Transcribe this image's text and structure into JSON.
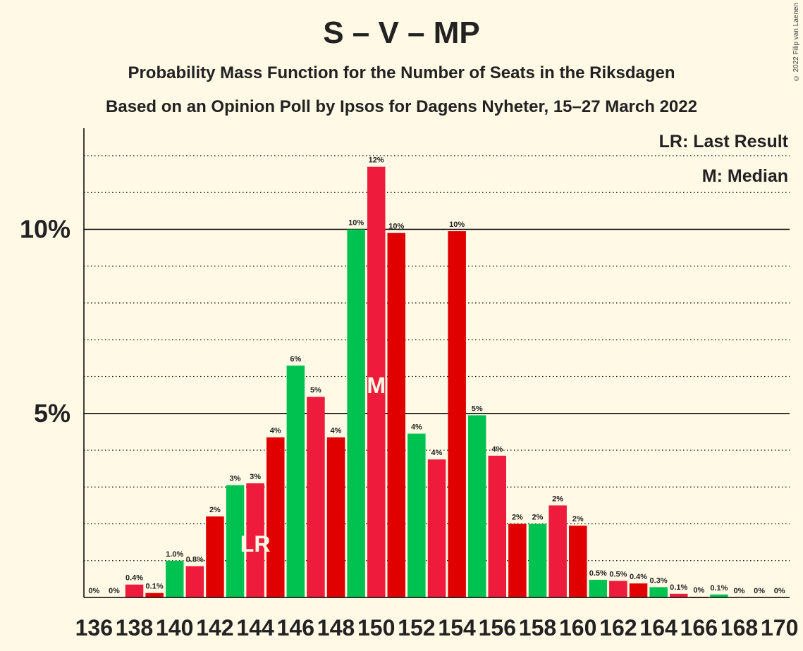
{
  "title": "S – V – MP",
  "subtitle1": "Probability Mass Function for the Number of Seats in the Riksdagen",
  "subtitle2": "Based on an Opinion Poll by Ipsos for Dagens Nyheter, 15–27 March 2022",
  "copyright": "© 2022 Filip van Laenen",
  "legend": {
    "lr": "LR: Last Result",
    "m": "M: Median"
  },
  "chart_data": {
    "type": "bar",
    "xlabel": "",
    "ylabel": "",
    "ylim": [
      0,
      12.7
    ],
    "y_ticks": [
      {
        "value": 5,
        "label": "5%"
      },
      {
        "value": 10,
        "label": "10%"
      }
    ],
    "grid": "dotted every 1%, solid at 5% and 10%",
    "legend_placement": "top-right",
    "colors": {
      "green": "#00c250",
      "pink": "#ee1b3c",
      "red": "#e00000"
    },
    "x_tick_step": 2,
    "last_result_seat": 144,
    "median_seat": 150,
    "markers": {
      "last_result": "LR",
      "median": "M"
    },
    "bars": [
      {
        "seat": 136,
        "value": 0,
        "label": "0%",
        "color": "green"
      },
      {
        "seat": 137,
        "value": 0,
        "label": "0%",
        "color": "pink"
      },
      {
        "seat": 138,
        "value": 0.35,
        "label": "0.4%",
        "color": "pink"
      },
      {
        "seat": 139,
        "value": 0.12,
        "label": "0.1%",
        "color": "red"
      },
      {
        "seat": 140,
        "value": 1.0,
        "label": "1.0%",
        "color": "green"
      },
      {
        "seat": 141,
        "value": 0.85,
        "label": "0.8%",
        "color": "pink"
      },
      {
        "seat": 142,
        "value": 2.2,
        "label": "2%",
        "color": "red"
      },
      {
        "seat": 143,
        "value": 3.05,
        "label": "3%",
        "color": "green"
      },
      {
        "seat": 144,
        "value": 3.1,
        "label": "3%",
        "color": "pink"
      },
      {
        "seat": 145,
        "value": 4.35,
        "label": "4%",
        "color": "red"
      },
      {
        "seat": 146,
        "value": 6.3,
        "label": "6%",
        "color": "green"
      },
      {
        "seat": 147,
        "value": 5.45,
        "label": "5%",
        "color": "pink"
      },
      {
        "seat": 148,
        "value": 4.35,
        "label": "4%",
        "color": "red"
      },
      {
        "seat": 149,
        "value": 10.0,
        "label": "10%",
        "color": "green"
      },
      {
        "seat": 150,
        "value": 11.7,
        "label": "12%",
        "color": "pink"
      },
      {
        "seat": 151,
        "value": 9.9,
        "label": "10%",
        "color": "red"
      },
      {
        "seat": 152,
        "value": 4.45,
        "label": "4%",
        "color": "green"
      },
      {
        "seat": 153,
        "value": 3.75,
        "label": "4%",
        "color": "pink"
      },
      {
        "seat": 154,
        "value": 9.95,
        "label": "10%",
        "color": "red"
      },
      {
        "seat": 155,
        "value": 4.95,
        "label": "5%",
        "color": "green"
      },
      {
        "seat": 156,
        "value": 3.85,
        "label": "4%",
        "color": "pink"
      },
      {
        "seat": 157,
        "value": 2.0,
        "label": "2%",
        "color": "red"
      },
      {
        "seat": 158,
        "value": 2.0,
        "label": "2%",
        "color": "green"
      },
      {
        "seat": 159,
        "value": 2.5,
        "label": "2%",
        "color": "pink"
      },
      {
        "seat": 160,
        "value": 1.95,
        "label": "2%",
        "color": "red"
      },
      {
        "seat": 161,
        "value": 0.48,
        "label": "0.5%",
        "color": "green"
      },
      {
        "seat": 162,
        "value": 0.45,
        "label": "0.5%",
        "color": "pink"
      },
      {
        "seat": 163,
        "value": 0.38,
        "label": "0.4%",
        "color": "red"
      },
      {
        "seat": 164,
        "value": 0.28,
        "label": "0.3%",
        "color": "green"
      },
      {
        "seat": 165,
        "value": 0.1,
        "label": "0.1%",
        "color": "pink"
      },
      {
        "seat": 166,
        "value": 0.02,
        "label": "0%",
        "color": "red"
      },
      {
        "seat": 167,
        "value": 0.08,
        "label": "0.1%",
        "color": "green"
      },
      {
        "seat": 168,
        "value": 0,
        "label": "0%",
        "color": "pink"
      },
      {
        "seat": 169,
        "value": 0,
        "label": "0%",
        "color": "red"
      },
      {
        "seat": 170,
        "value": 0,
        "label": "0%",
        "color": "green"
      }
    ]
  }
}
